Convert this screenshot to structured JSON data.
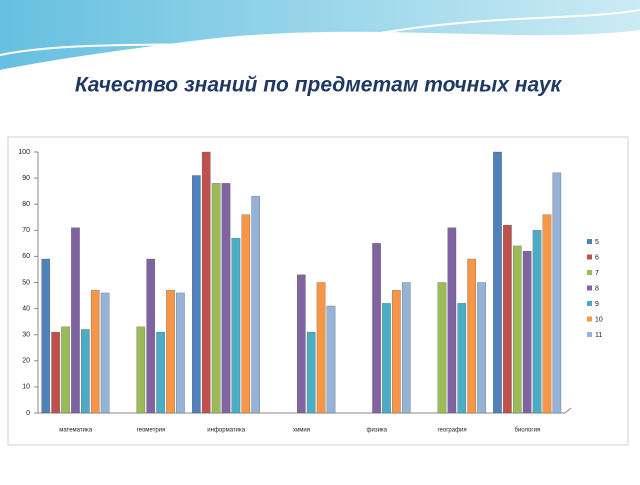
{
  "chart_data": {
    "type": "bar",
    "title": "Качество знаний по предметам точных наук",
    "categories": [
      "математика",
      "геометрия",
      "информатика",
      "химия",
      "физика",
      "география",
      "биология"
    ],
    "series": [
      {
        "name": "5",
        "color": "#4f81bd",
        "values": [
          59,
          null,
          91,
          null,
          null,
          null,
          100
        ]
      },
      {
        "name": "6",
        "color": "#c0504d",
        "values": [
          31,
          null,
          100,
          null,
          null,
          null,
          72
        ]
      },
      {
        "name": "7",
        "color": "#9bbb59",
        "values": [
          33,
          33,
          88,
          null,
          null,
          50,
          64
        ]
      },
      {
        "name": "8",
        "color": "#8064a2",
        "values": [
          71,
          59,
          88,
          53,
          65,
          71,
          62
        ]
      },
      {
        "name": "9",
        "color": "#4bacc6",
        "values": [
          32,
          31,
          67,
          31,
          42,
          42,
          70
        ]
      },
      {
        "name": "10",
        "color": "#f79646",
        "values": [
          47,
          47,
          76,
          50,
          47,
          59,
          76
        ]
      },
      {
        "name": "11",
        "color": "#95b3d7",
        "values": [
          46,
          46,
          83,
          41,
          50,
          50,
          92
        ]
      }
    ],
    "ylim": [
      0,
      100
    ],
    "yticks": [
      0,
      10,
      20,
      30,
      40,
      50,
      60,
      70,
      80,
      90,
      100
    ],
    "grid": false,
    "legend": "right"
  }
}
